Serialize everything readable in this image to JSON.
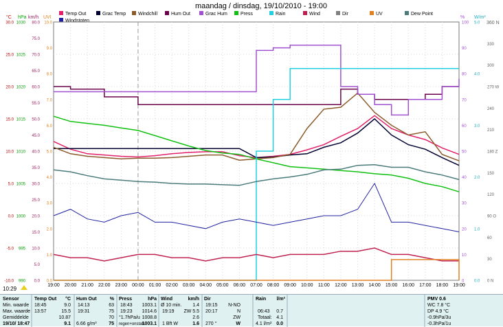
{
  "title": "maandag / dinsdag, 19/10/2010 - 19:00",
  "legend": [
    {
      "label": "Temp Out",
      "color": "#e0206a"
    },
    {
      "label": "Grac Temp",
      "color": "#000030"
    },
    {
      "label": "Windchill",
      "color": "#8b5a2b"
    },
    {
      "label": "Hum Out",
      "color": "#6a004a"
    },
    {
      "label": "Grac Hum",
      "color": "#a050d0"
    },
    {
      "label": "Press",
      "color": "#10c010"
    },
    {
      "label": "Rain",
      "color": "#20d0e0"
    },
    {
      "label": "Wind",
      "color": "#c02050"
    },
    {
      "label": "Dir",
      "color": "#808080"
    },
    {
      "label": "UV",
      "color": "#e08020"
    },
    {
      "label": "Dew Point",
      "color": "#4a7a7a"
    },
    {
      "label": "Windstoten",
      "color": "#2020a0"
    }
  ],
  "axis_headers": {
    "celsius": "°C",
    "hpa": "hPa",
    "kmh": "km/h",
    "uv": "UVI",
    "percent": "%",
    "mm": "mm",
    "wm2": "W/m²",
    "dir": "360 N"
  },
  "axes": {
    "celsius": [
      "30.0",
      "25.0",
      "20.0",
      "15.0",
      "10.0",
      "5.0",
      "0.0",
      "-5.0",
      "-10.0"
    ],
    "hpa": [
      "1030",
      "1025",
      "1020",
      "1015",
      "1010",
      "1005",
      "1000",
      "995",
      "990"
    ],
    "kmh": [
      "80.0",
      "75.0",
      "70.0",
      "65.0",
      "60.0",
      "55.0",
      "50.0",
      "45.0",
      "40.0",
      "35.0",
      "30.0",
      "25.0",
      "20.0",
      "15.0",
      "10.0",
      "5.0",
      "0.0"
    ],
    "uv": [
      "10.0",
      "9.0",
      "8.0",
      "7.0",
      "6.0",
      "5.0",
      "4.0",
      "3.0",
      "2.0",
      "1.0",
      "0.0"
    ],
    "percent": [
      "100",
      "90",
      "80",
      "70",
      "60",
      "50",
      "40",
      "30",
      "20",
      "10",
      "0"
    ],
    "mm": [
      "5.0",
      "4.0",
      "3.0",
      "2.0",
      "1.0",
      "0.0"
    ],
    "wm2": [
      "",
      "",
      "",
      "",
      "",
      "",
      "",
      "",
      "",
      ""
    ],
    "dir": [
      "330",
      "300",
      "270 W",
      "240",
      "210",
      "180 Z",
      "150",
      "120",
      "90 O",
      "60",
      "30",
      "0 N"
    ]
  },
  "x_ticks": [
    "19:00",
    "20:00",
    "21:00",
    "22:00",
    "23:00",
    "00:00",
    "01:00",
    "02:00",
    "03:00",
    "04:00",
    "05:00",
    "06:00",
    "07:00",
    "08:00",
    "09:00",
    "10:00",
    "11:00",
    "12:00",
    "13:00",
    "14:00",
    "15:00",
    "16:00",
    "17:00",
    "18:00",
    "19:00"
  ],
  "time_label": "10:29",
  "chart_data": {
    "type": "line",
    "title": "maandag / dinsdag, 19/10/2010 - 19:00",
    "x": [
      "19:00",
      "20:00",
      "21:00",
      "22:00",
      "23:00",
      "00:00",
      "01:00",
      "02:00",
      "03:00",
      "04:00",
      "05:00",
      "06:00",
      "07:00",
      "08:00",
      "09:00",
      "10:00",
      "11:00",
      "12:00",
      "13:00",
      "14:00",
      "15:00",
      "16:00",
      "17:00",
      "18:00",
      "19:00"
    ],
    "series": [
      {
        "name": "Temp Out",
        "axis": "celsius",
        "color": "#e0206a",
        "values": [
          11.5,
          10.3,
          9.6,
          9.4,
          9.2,
          9.1,
          9.3,
          9.6,
          9.8,
          9.9,
          9.9,
          9.3,
          9.0,
          9.2,
          9.5,
          10.2,
          11.0,
          12.3,
          13.5,
          15.5,
          13.5,
          12.5,
          11.8,
          10.5,
          9.5
        ]
      },
      {
        "name": "Grac Temp",
        "axis": "celsius",
        "color": "#000030",
        "values": [
          10.4,
          10.4,
          10.4,
          10.4,
          10.4,
          10.4,
          10.4,
          10.4,
          10.4,
          10.4,
          10.4,
          10.4,
          9.0,
          9.1,
          9.4,
          9.6,
          10.6,
          11.3,
          12.8,
          15.0,
          12.5,
          11.0,
          10.3,
          9.0,
          7.8
        ]
      },
      {
        "name": "Windchill",
        "axis": "celsius",
        "color": "#8b5a2b",
        "values": [
          10.6,
          9.6,
          9.2,
          9.0,
          8.8,
          8.9,
          8.9,
          9.0,
          9.2,
          9.4,
          9.4,
          8.6,
          8.8,
          9.0,
          9.5,
          13.5,
          16.5,
          16.8,
          19.0,
          16.0,
          14.0,
          12.5,
          13.0,
          9.5,
          8.5
        ]
      },
      {
        "name": "Hum Out",
        "axis": "percent",
        "color": "#6a004a",
        "values": [
          75,
          74,
          74,
          71,
          71,
          68,
          68,
          68,
          68,
          68,
          68,
          68,
          68,
          68,
          68,
          68,
          68,
          74,
          72,
          70,
          70,
          70,
          72,
          75,
          75
        ]
      },
      {
        "name": "Grac Hum",
        "axis": "percent",
        "color": "#a050d0",
        "values": [
          73,
          73,
          73,
          73,
          73,
          73,
          73,
          73,
          73,
          73,
          73,
          73,
          89,
          90,
          91,
          91,
          91,
          75,
          72,
          68,
          64,
          70,
          70,
          75,
          78
        ]
      },
      {
        "name": "Press",
        "axis": "hpa",
        "color": "#10c010",
        "values": [
          1015.4,
          1014.6,
          1014.3,
          1014.0,
          1013.6,
          1013.2,
          1012.4,
          1011.6,
          1010.8,
          1010.1,
          1009.7,
          1009.5,
          1008.8,
          1008.2,
          1007.6,
          1007.4,
          1007.2,
          1007.0,
          1006.8,
          1006.5,
          1006.3,
          1005.8,
          1005.0,
          1004.5,
          1003.7
        ]
      },
      {
        "name": "Rain",
        "axis": "mm",
        "color": "#20d0e0",
        "values": [
          0,
          0,
          0,
          0,
          0,
          0,
          0,
          0,
          0,
          0,
          0,
          0,
          2.5,
          3.5,
          4.1,
          4.1,
          4.1,
          4.1,
          4.1,
          4.1,
          4.1,
          4.1,
          4.1,
          4.1,
          4.1
        ]
      },
      {
        "name": "Dew Point",
        "axis": "celsius",
        "color": "#4a7a7a",
        "values": [
          7.1,
          6.8,
          6.2,
          5.7,
          5.5,
          5.3,
          5.2,
          5.0,
          4.9,
          4.9,
          4.8,
          4.7,
          5.3,
          5.7,
          6.0,
          6.4,
          7.1,
          7.2,
          7.8,
          7.9,
          7.5,
          7.5,
          6.8,
          6.3,
          5.6
        ]
      },
      {
        "name": "Wind",
        "axis": "kmh",
        "color": "#c02050",
        "values": [
          8,
          7,
          7,
          6,
          7,
          8,
          8,
          7,
          7,
          6,
          7,
          7,
          8,
          7,
          8,
          8,
          8,
          9,
          9,
          10,
          8,
          8,
          7,
          6,
          6
        ]
      },
      {
        "name": "Windstoten",
        "axis": "kmh",
        "color": "#2020a0",
        "values": [
          20,
          22,
          19,
          18,
          20,
          21,
          18,
          18,
          17,
          16,
          18,
          19,
          18,
          17,
          18,
          19,
          20,
          20,
          22,
          30,
          18,
          18,
          17,
          16,
          15
        ]
      },
      {
        "name": "UV",
        "axis": "uv",
        "color": "#e08020",
        "values": [
          0,
          0,
          0,
          0,
          0,
          0,
          0,
          0,
          0,
          0,
          0,
          0,
          0,
          0,
          0,
          0,
          0,
          0,
          0,
          0,
          0.8,
          0.8,
          0.8,
          0.8,
          0
        ]
      }
    ]
  },
  "status": {
    "sensor": {
      "h": "Sensor",
      "r1": "Min. waarde",
      "r2": "Max. waarde",
      "r3": "Gemiddelde",
      "r4": "19/10/ 18:47"
    },
    "temp": {
      "h": "Temp Out",
      "u": "°C",
      "r1a": "18:45",
      "r1b": "9.0",
      "r2a": "13:57",
      "r2b": "15.5",
      "r3b": "10.87",
      "r4b": "9.1"
    },
    "hum": {
      "h": "Hum Out",
      "u": "%",
      "r1a": "14:13",
      "r1b": "63",
      "r2a": "19:31",
      "r2b": "75",
      "r3b": "70",
      "r4a": "6.66 g/m³",
      "r4b": "75"
    },
    "press": {
      "h": "Press",
      "u": "hPa",
      "r1a": "18:43",
      "r1b": "1003.1",
      "r2a": "19:23",
      "r2b": "1014.6",
      "r3a": "°1.7hPa/u",
      "r3b": "1008.8",
      "r4a": "regen+onstab.",
      "r4b": "1003.1"
    },
    "wind": {
      "h": "Wind",
      "u": "km/h",
      "r1a": "Ø 10 min.",
      "r1b": "1.4",
      "r2a": "19:19",
      "r2b": "ZW 5.5",
      "r3b": "2.6",
      "r4a": "1 Bft W",
      "r4b": "1.6"
    },
    "dir": {
      "h": "Dir",
      "r1a": "19:15",
      "r1b": "N-NO",
      "r2a": "20:17",
      "r2b": "N",
      "r3b": "ZW",
      "r4a": "270 °",
      "r4b": "W"
    },
    "rain": {
      "h": "Rain",
      "u": "l/m²",
      "r2a": "06:43",
      "r2b": "0.7",
      "r3a": "Totaal:",
      "r3b": "4.1",
      "r4a": "4.1 l/m²",
      "r4b": "0.0"
    },
    "extra": {
      "r1": "PMV 0.6",
      "r2": "WC 7.8 °C",
      "r3": "DP 4.9 °C",
      "r4": "-0.9hPa/3u",
      "r5": "-0.3hPa/1u"
    }
  }
}
